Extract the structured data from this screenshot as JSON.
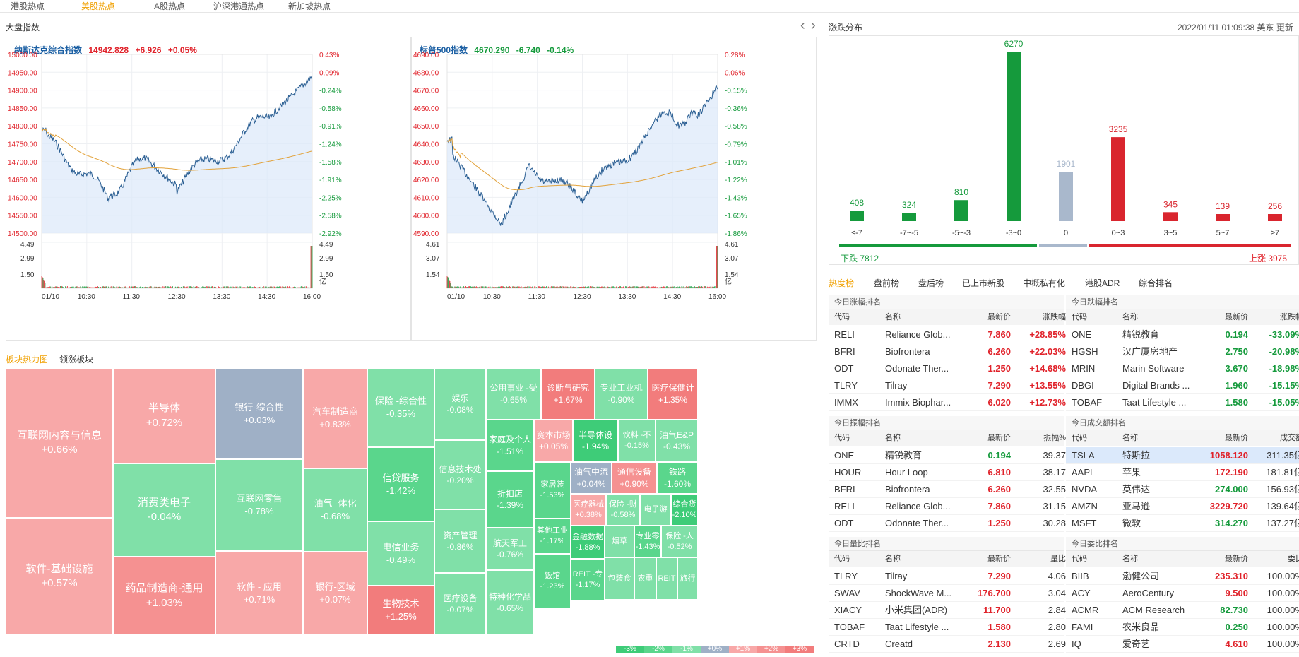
{
  "top_tabs": [
    {
      "label": "港股热点",
      "active": false
    },
    {
      "label": "美股热点",
      "active": true
    },
    {
      "label": "A股热点",
      "active": false
    },
    {
      "label": "沪深港通热点",
      "active": false
    },
    {
      "label": "新加坡热点",
      "active": false
    }
  ],
  "index_section": {
    "title": "大盘指数",
    "nav_prev": "‹",
    "nav_next": "›"
  },
  "nasdaq": {
    "name": "纳斯达克综合指数",
    "price": "14942.828",
    "change": "+6.926",
    "pct": "+0.05%",
    "y_left": [
      "15000.00",
      "14950.00",
      "14900.00",
      "14850.00",
      "14800.00",
      "14750.00",
      "14700.00",
      "14650.00",
      "14600.00",
      "14550.00",
      "14500.00"
    ],
    "y_right": [
      "0.43%",
      "0.09%",
      "-0.24%",
      "-0.58%",
      "-0.91%",
      "-1.24%",
      "-1.58%",
      "-1.91%",
      "-2.25%",
      "-2.58%",
      "-2.92%"
    ],
    "vol_left": [
      "4.49",
      "2.99",
      "1.50"
    ],
    "vol_right": [
      "4.49",
      "2.99",
      "1.50",
      "亿"
    ],
    "x_ticks": [
      "01/10",
      "10:30",
      "11:30",
      "12:30",
      "13:30",
      "14:30",
      "16:00"
    ]
  },
  "sp500": {
    "name": "标普500指数",
    "price": "4670.290",
    "change": "-6.740",
    "pct": "-0.14%",
    "y_left": [
      "4690.00",
      "4680.00",
      "4670.00",
      "4660.00",
      "4650.00",
      "4640.00",
      "4630.00",
      "4620.00",
      "4610.00",
      "4600.00",
      "4590.00"
    ],
    "y_right": [
      "0.28%",
      "0.06%",
      "-0.15%",
      "-0.36%",
      "-0.58%",
      "-0.79%",
      "-1.01%",
      "-1.22%",
      "-1.43%",
      "-1.65%",
      "-1.86%"
    ],
    "vol_left": [
      "4.61",
      "3.07",
      "1.54"
    ],
    "vol_right": [
      "4.61",
      "3.07",
      "1.54",
      "亿"
    ],
    "x_ticks": [
      "01/10",
      "10:30",
      "11:30",
      "12:30",
      "13:30",
      "14:30",
      "16:00"
    ]
  },
  "distribution": {
    "title": "涨跌分布",
    "timestamp": "2022/01/11 01:09:38 美东 更新",
    "down_label": "下跌 7812",
    "up_label": "上涨 3975"
  },
  "chart_data": {
    "type": "bar",
    "title": "涨跌分布",
    "categories": [
      "≤-7",
      "-7~-5",
      "-5~-3",
      "-3~0",
      "0",
      "0~3",
      "3~5",
      "5~7",
      "≥7"
    ],
    "values": [
      408,
      324,
      810,
      6270,
      1901,
      3235,
      345,
      139,
      256
    ],
    "colors": [
      "#159a3c",
      "#159a3c",
      "#159a3c",
      "#159a3c",
      "#a9b8cc",
      "#d9252e",
      "#d9252e",
      "#d9252e",
      "#d9252e"
    ]
  },
  "heatmap_tabs": [
    {
      "label": "板块热力图",
      "active": true
    },
    {
      "label": "领涨板块",
      "active": false
    }
  ],
  "sectors": [
    {
      "name": "互联网内容与信息",
      "pct": "+0.66%"
    },
    {
      "name": "软件-基础设施",
      "pct": "+0.57%"
    },
    {
      "name": "半导体",
      "pct": "+0.72%"
    },
    {
      "name": "消费类电子",
      "pct": "-0.04%"
    },
    {
      "name": "药品制造商-通用",
      "pct": "+1.03%"
    },
    {
      "name": "银行-综合性",
      "pct": "+0.03%"
    },
    {
      "name": "互联网零售",
      "pct": "-0.78%"
    },
    {
      "name": "软件 - 应用",
      "pct": "+0.71%"
    },
    {
      "name": "汽车制造商",
      "pct": "+0.83%"
    },
    {
      "name": "油气 -体化",
      "pct": "-0.68%"
    },
    {
      "name": "银行-区域",
      "pct": "+0.07%"
    },
    {
      "name": "保险 -综合性",
      "pct": "-0.35%"
    },
    {
      "name": "信贷服务",
      "pct": "-1.42%"
    },
    {
      "name": "电信业务",
      "pct": "-0.49%"
    },
    {
      "name": "生物技术",
      "pct": "+1.25%"
    },
    {
      "name": "娱乐",
      "pct": "-0.08%"
    },
    {
      "name": "信息技术处",
      "pct": "-0.20%"
    },
    {
      "name": "资产管理",
      "pct": "-0.86%"
    },
    {
      "name": "医疗设备",
      "pct": "-0.07%"
    },
    {
      "name": "公用事业 -受",
      "pct": "-0.65%"
    },
    {
      "name": "诊断与研究",
      "pct": "+1.67%"
    },
    {
      "name": "专业工业机",
      "pct": "-0.90%"
    },
    {
      "name": "医疗保健计",
      "pct": "+1.35%"
    },
    {
      "name": "家庭及个人",
      "pct": "-1.51%"
    },
    {
      "name": "资本市场",
      "pct": "+0.05%"
    },
    {
      "name": "半导体设",
      "pct": "-1.94%"
    },
    {
      "name": "饮料 -不",
      "pct": "-0.15%"
    },
    {
      "name": "油气E&P",
      "pct": "-0.43%"
    },
    {
      "name": "折扣店",
      "pct": "-1.39%"
    },
    {
      "name": "家居装",
      "pct": "-1.53%"
    },
    {
      "name": "油气中流",
      "pct": "+0.04%"
    },
    {
      "name": "通信设备",
      "pct": "+0.90%"
    },
    {
      "name": "铁路",
      "pct": "-1.60%"
    },
    {
      "name": "航天军工",
      "pct": "-0.76%"
    },
    {
      "name": "医疗器械",
      "pct": "+0.38%"
    },
    {
      "name": "保险 -财",
      "pct": "-0.58%"
    },
    {
      "name": "电子游",
      "pct": ""
    },
    {
      "name": "综合货",
      "pct": "-2.10%"
    },
    {
      "name": "其他工业",
      "pct": "-1.17%"
    },
    {
      "name": "金融数据",
      "pct": "-1.88%"
    },
    {
      "name": "烟草",
      "pct": ""
    },
    {
      "name": "专业零",
      "pct": "-1.43%"
    },
    {
      "name": "保险 -人",
      "pct": "-0.52%"
    },
    {
      "name": "特种化学品",
      "pct": "-0.65%"
    },
    {
      "name": "饭馆",
      "pct": "-1.23%"
    },
    {
      "name": "REIT -专",
      "pct": "-1.17%"
    },
    {
      "name": "包装食",
      "pct": ""
    },
    {
      "name": "农重",
      "pct": ""
    },
    {
      "name": "REIT",
      "pct": ""
    },
    {
      "name": "旅行",
      "pct": ""
    }
  ],
  "heat_legend": [
    "-3%",
    "-2%",
    "-1%",
    "+0%",
    "+1%",
    "+2%",
    "+3%"
  ],
  "rank_tabs": [
    {
      "label": "热度榜",
      "active": true
    },
    {
      "label": "盘前榜",
      "active": false
    },
    {
      "label": "盘后榜",
      "active": false
    },
    {
      "label": "已上市新股",
      "active": false
    },
    {
      "label": "中概私有化",
      "active": false
    },
    {
      "label": "港股ADR",
      "active": false
    },
    {
      "label": "综合排名",
      "active": false
    }
  ],
  "tables": [
    {
      "title": "今日涨幅排名",
      "headers": [
        "代码",
        "名称",
        "最新价",
        "涨跌幅"
      ],
      "rows": [
        [
          "RELI",
          "Reliance Glob...",
          "7.860",
          "+28.85%"
        ],
        [
          "BFRI",
          "Biofrontera",
          "6.260",
          "+22.03%"
        ],
        [
          "ODT",
          "Odonate Ther...",
          "1.250",
          "+14.68%"
        ],
        [
          "TLRY",
          "Tilray",
          "7.290",
          "+13.55%"
        ],
        [
          "IMMX",
          "Immix Biophar...",
          "6.020",
          "+12.73%"
        ]
      ]
    },
    {
      "title": "今日跌幅排名",
      "headers": [
        "代码",
        "名称",
        "最新价",
        "涨跌幅"
      ],
      "rows": [
        [
          "ONE",
          "精锐教育",
          "0.194",
          "-33.09%"
        ],
        [
          "HGSH",
          "汉广厦房地产",
          "2.750",
          "-20.98%"
        ],
        [
          "MRIN",
          "Marin Software",
          "3.670",
          "-18.98%"
        ],
        [
          "DBGI",
          "Digital Brands ...",
          "1.960",
          "-15.15%"
        ],
        [
          "TOBAF",
          "Taat Lifestyle ...",
          "1.580",
          "-15.05%"
        ]
      ]
    },
    {
      "title": "今日振幅排名",
      "headers": [
        "代码",
        "名称",
        "最新价",
        "振幅%"
      ],
      "rows": [
        [
          "ONE",
          "精锐教育",
          "0.194",
          "39.37"
        ],
        [
          "HOUR",
          "Hour Loop",
          "6.810",
          "38.17"
        ],
        [
          "BFRI",
          "Biofrontera",
          "6.260",
          "32.55"
        ],
        [
          "RELI",
          "Reliance Glob...",
          "7.860",
          "31.15"
        ],
        [
          "ODT",
          "Odonate Ther...",
          "1.250",
          "30.28"
        ]
      ]
    },
    {
      "title": "今日成交额排名",
      "headers": [
        "代码",
        "名称",
        "最新价",
        "成交额"
      ],
      "rows": [
        [
          "TSLA",
          "特斯拉",
          "1058.120",
          "311.35亿"
        ],
        [
          "AAPL",
          "苹果",
          "172.190",
          "181.81亿"
        ],
        [
          "NVDA",
          "英伟达",
          "274.000",
          "156.93亿"
        ],
        [
          "AMZN",
          "亚马逊",
          "3229.720",
          "139.64亿"
        ],
        [
          "MSFT",
          "微软",
          "314.270",
          "137.27亿"
        ]
      ]
    },
    {
      "title": "今日量比排名",
      "headers": [
        "代码",
        "名称",
        "最新价",
        "量比"
      ],
      "rows": [
        [
          "TLRY",
          "Tilray",
          "7.290",
          "4.06"
        ],
        [
          "SWAV",
          "ShockWave M...",
          "176.700",
          "3.04"
        ],
        [
          "XIACY",
          "小米集团(ADR)",
          "11.700",
          "2.84"
        ],
        [
          "TOBAF",
          "Taat Lifestyle ...",
          "1.580",
          "2.80"
        ],
        [
          "CRTD",
          "Creatd",
          "2.130",
          "2.69"
        ]
      ]
    },
    {
      "title": "今日委比排名",
      "headers": [
        "代码",
        "名称",
        "最新价",
        "委比"
      ],
      "rows": [
        [
          "BIIB",
          "渤健公司",
          "235.310",
          "100.00%"
        ],
        [
          "ACY",
          "AeroCentury",
          "9.500",
          "100.00%"
        ],
        [
          "ACMR",
          "ACM Research",
          "82.730",
          "100.00%"
        ],
        [
          "FAMI",
          "农米良品",
          "0.250",
          "100.00%"
        ],
        [
          "IQ",
          "爱奇艺",
          "4.610",
          "100.00%"
        ]
      ]
    }
  ],
  "colors": {
    "up": "#e0222a",
    "down": "#159a3c",
    "accent": "#f0a000",
    "flat": "#a9b8cc"
  }
}
